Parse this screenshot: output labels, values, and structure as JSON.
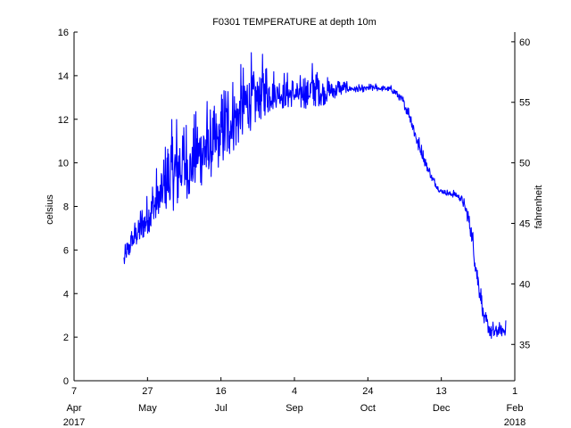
{
  "chart_data": {
    "type": "line",
    "title": "F0301 TEMPERATURE at depth 10m",
    "ylabel": "celsius",
    "ylabel_right": "fahrenheit",
    "xlim": [
      "2017-04-07",
      "2018-02-01"
    ],
    "ylim": [
      0,
      16
    ],
    "ylim_right_fahrenheit": [
      32,
      60.8
    ],
    "yticks": [
      "0",
      "2",
      "4",
      "6",
      "8",
      "10",
      "12",
      "14",
      "16"
    ],
    "yticks_right": [
      "35",
      "40",
      "45",
      "50",
      "55",
      "60"
    ],
    "x_ticks": [
      {
        "date": "2017-04-07",
        "day": "7",
        "month": "Apr",
        "year": "2017"
      },
      {
        "date": "2017-05-27",
        "day": "27",
        "month": "May",
        "year": ""
      },
      {
        "date": "2017-07-16",
        "day": "16",
        "month": "Jul",
        "year": ""
      },
      {
        "date": "2017-09-04",
        "day": "4",
        "month": "Sep",
        "year": ""
      },
      {
        "date": "2017-10-24",
        "day": "24",
        "month": "Oct",
        "year": ""
      },
      {
        "date": "2017-12-13",
        "day": "13",
        "month": "Dec",
        "year": ""
      },
      {
        "date": "2018-02-01",
        "day": "1",
        "month": "Feb",
        "year": "2018"
      }
    ],
    "grid": false,
    "series": [
      {
        "color": "#0000ff",
        "x": [
          "2017-05-11",
          "2017-05-16",
          "2017-05-21",
          "2017-05-26",
          "2017-05-31",
          "2017-06-05",
          "2017-06-10",
          "2017-06-15",
          "2017-06-20",
          "2017-06-25",
          "2017-06-30",
          "2017-07-05",
          "2017-07-10",
          "2017-07-15",
          "2017-07-20",
          "2017-07-25",
          "2017-07-30",
          "2017-08-04",
          "2017-08-09",
          "2017-08-14",
          "2017-08-19",
          "2017-08-24",
          "2017-08-29",
          "2017-09-03",
          "2017-09-08",
          "2017-09-13",
          "2017-09-18",
          "2017-09-23",
          "2017-09-28",
          "2017-10-03",
          "2017-10-08",
          "2017-10-13",
          "2017-10-18",
          "2017-10-23",
          "2017-10-28",
          "2017-11-02",
          "2017-11-07",
          "2017-11-12",
          "2017-11-17",
          "2017-11-22",
          "2017-11-27",
          "2017-12-02",
          "2017-12-07",
          "2017-12-12",
          "2017-12-17",
          "2017-12-22",
          "2017-12-27",
          "2018-01-01",
          "2018-01-06",
          "2018-01-11",
          "2018-01-16",
          "2018-01-21",
          "2018-01-26"
        ],
        "y_min": [
          5.2,
          5.9,
          6.3,
          6.7,
          7.0,
          7.3,
          7.6,
          7.9,
          8.2,
          8.5,
          8.8,
          9.1,
          9.4,
          9.8,
          10.2,
          10.6,
          11.0,
          11.4,
          11.8,
          12.1,
          12.4,
          12.5,
          12.5,
          12.6,
          12.5,
          12.5,
          12.6,
          12.6,
          12.9,
          13.0,
          13.2,
          13.3,
          13.2,
          13.3,
          13.3,
          13.3,
          13.3,
          13.1,
          12.6,
          11.8,
          10.6,
          9.8,
          9.1,
          8.6,
          8.5,
          8.4,
          8.2,
          7.0,
          4.5,
          2.6,
          1.9,
          2.0,
          2.1
        ],
        "y_max": [
          6.1,
          7.1,
          8.0,
          8.5,
          9.6,
          10.4,
          11.5,
          12.5,
          13.0,
          11.8,
          12.7,
          13.6,
          12.5,
          13.0,
          14.4,
          14.2,
          14.6,
          15.3,
          14.9,
          15.1,
          14.6,
          14.2,
          14.3,
          14.0,
          14.1,
          14.5,
          15.0,
          14.1,
          13.9,
          14.0,
          13.8,
          13.6,
          13.6,
          13.6,
          13.7,
          13.6,
          13.6,
          13.5,
          13.1,
          12.5,
          11.4,
          10.4,
          9.5,
          8.9,
          8.8,
          8.8,
          8.6,
          7.9,
          6.0,
          3.3,
          2.8,
          2.7,
          2.8
        ]
      }
    ]
  }
}
